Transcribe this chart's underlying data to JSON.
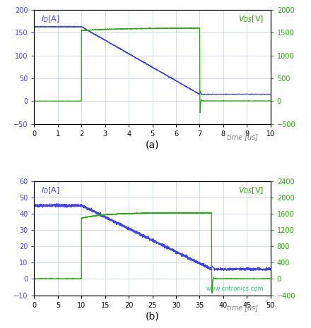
{
  "plot_a": {
    "title_label": "(a)",
    "xlim": [
      0,
      10
    ],
    "ylim_left": [
      -50,
      200
    ],
    "ylim_right": [
      -500,
      2000
    ],
    "xlabel": "time [us]",
    "ylabel_left": "I_D[A]",
    "ylabel_right": "V_DS[V]",
    "xticks": [
      0,
      1,
      2,
      3,
      4,
      5,
      6,
      7,
      8,
      9,
      10
    ],
    "yticks_left": [
      -50,
      0,
      50,
      100,
      150,
      200
    ],
    "yticks_right": [
      -500,
      0,
      500,
      1000,
      1500,
      2000
    ],
    "blue_color": "#4040ff",
    "green_color": "#22aa00",
    "bg_color": "#ffffff",
    "grid_color": "#c8d8e8"
  },
  "plot_b": {
    "title_label": "(b)",
    "xlim": [
      0,
      50
    ],
    "ylim_left": [
      -10,
      60
    ],
    "ylim_right": [
      -400,
      2400
    ],
    "xlabel": "time [us]",
    "ylabel_left": "I_D[A]",
    "ylabel_right": "V_DS[V]",
    "xticks": [
      0,
      5,
      10,
      15,
      20,
      25,
      30,
      35,
      40,
      45,
      50
    ],
    "yticks_left": [
      -10,
      0,
      10,
      20,
      30,
      40,
      50,
      60
    ],
    "yticks_right": [
      -400,
      0,
      400,
      800,
      1200,
      1600,
      2000,
      2400
    ],
    "blue_color": "#4040ff",
    "green_color": "#22aa00",
    "bg_color": "#ffffff",
    "grid_color": "#c8d8e8",
    "watermark": "www.cntronics.com"
  }
}
